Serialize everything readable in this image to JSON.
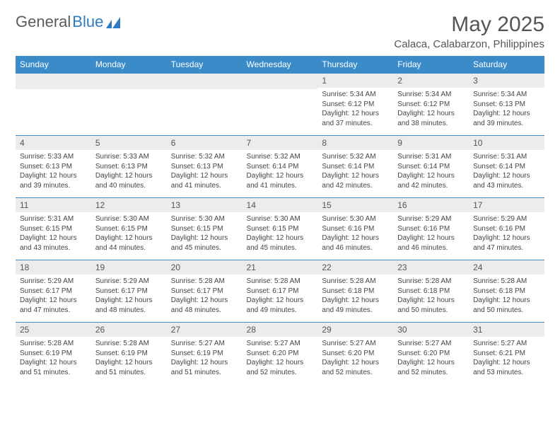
{
  "logo": {
    "text1": "General",
    "text2": "Blue"
  },
  "title": "May 2025",
  "location": "Calaca, Calabarzon, Philippines",
  "columns": [
    "Sunday",
    "Monday",
    "Tuesday",
    "Wednesday",
    "Thursday",
    "Friday",
    "Saturday"
  ],
  "colors": {
    "header_bg": "#3b8bc8",
    "header_text": "#ffffff",
    "daynum_bg": "#ececec",
    "text": "#444444",
    "row_border": "#3b8bc8"
  },
  "weeks": [
    [
      null,
      null,
      null,
      null,
      {
        "n": "1",
        "sr": "5:34 AM",
        "ss": "6:12 PM",
        "dl": "12 hours and 37 minutes."
      },
      {
        "n": "2",
        "sr": "5:34 AM",
        "ss": "6:12 PM",
        "dl": "12 hours and 38 minutes."
      },
      {
        "n": "3",
        "sr": "5:34 AM",
        "ss": "6:13 PM",
        "dl": "12 hours and 39 minutes."
      }
    ],
    [
      {
        "n": "4",
        "sr": "5:33 AM",
        "ss": "6:13 PM",
        "dl": "12 hours and 39 minutes."
      },
      {
        "n": "5",
        "sr": "5:33 AM",
        "ss": "6:13 PM",
        "dl": "12 hours and 40 minutes."
      },
      {
        "n": "6",
        "sr": "5:32 AM",
        "ss": "6:13 PM",
        "dl": "12 hours and 41 minutes."
      },
      {
        "n": "7",
        "sr": "5:32 AM",
        "ss": "6:14 PM",
        "dl": "12 hours and 41 minutes."
      },
      {
        "n": "8",
        "sr": "5:32 AM",
        "ss": "6:14 PM",
        "dl": "12 hours and 42 minutes."
      },
      {
        "n": "9",
        "sr": "5:31 AM",
        "ss": "6:14 PM",
        "dl": "12 hours and 42 minutes."
      },
      {
        "n": "10",
        "sr": "5:31 AM",
        "ss": "6:14 PM",
        "dl": "12 hours and 43 minutes."
      }
    ],
    [
      {
        "n": "11",
        "sr": "5:31 AM",
        "ss": "6:15 PM",
        "dl": "12 hours and 43 minutes."
      },
      {
        "n": "12",
        "sr": "5:30 AM",
        "ss": "6:15 PM",
        "dl": "12 hours and 44 minutes."
      },
      {
        "n": "13",
        "sr": "5:30 AM",
        "ss": "6:15 PM",
        "dl": "12 hours and 45 minutes."
      },
      {
        "n": "14",
        "sr": "5:30 AM",
        "ss": "6:15 PM",
        "dl": "12 hours and 45 minutes."
      },
      {
        "n": "15",
        "sr": "5:30 AM",
        "ss": "6:16 PM",
        "dl": "12 hours and 46 minutes."
      },
      {
        "n": "16",
        "sr": "5:29 AM",
        "ss": "6:16 PM",
        "dl": "12 hours and 46 minutes."
      },
      {
        "n": "17",
        "sr": "5:29 AM",
        "ss": "6:16 PM",
        "dl": "12 hours and 47 minutes."
      }
    ],
    [
      {
        "n": "18",
        "sr": "5:29 AM",
        "ss": "6:17 PM",
        "dl": "12 hours and 47 minutes."
      },
      {
        "n": "19",
        "sr": "5:29 AM",
        "ss": "6:17 PM",
        "dl": "12 hours and 48 minutes."
      },
      {
        "n": "20",
        "sr": "5:28 AM",
        "ss": "6:17 PM",
        "dl": "12 hours and 48 minutes."
      },
      {
        "n": "21",
        "sr": "5:28 AM",
        "ss": "6:17 PM",
        "dl": "12 hours and 49 minutes."
      },
      {
        "n": "22",
        "sr": "5:28 AM",
        "ss": "6:18 PM",
        "dl": "12 hours and 49 minutes."
      },
      {
        "n": "23",
        "sr": "5:28 AM",
        "ss": "6:18 PM",
        "dl": "12 hours and 50 minutes."
      },
      {
        "n": "24",
        "sr": "5:28 AM",
        "ss": "6:18 PM",
        "dl": "12 hours and 50 minutes."
      }
    ],
    [
      {
        "n": "25",
        "sr": "5:28 AM",
        "ss": "6:19 PM",
        "dl": "12 hours and 51 minutes."
      },
      {
        "n": "26",
        "sr": "5:28 AM",
        "ss": "6:19 PM",
        "dl": "12 hours and 51 minutes."
      },
      {
        "n": "27",
        "sr": "5:27 AM",
        "ss": "6:19 PM",
        "dl": "12 hours and 51 minutes."
      },
      {
        "n": "28",
        "sr": "5:27 AM",
        "ss": "6:20 PM",
        "dl": "12 hours and 52 minutes."
      },
      {
        "n": "29",
        "sr": "5:27 AM",
        "ss": "6:20 PM",
        "dl": "12 hours and 52 minutes."
      },
      {
        "n": "30",
        "sr": "5:27 AM",
        "ss": "6:20 PM",
        "dl": "12 hours and 52 minutes."
      },
      {
        "n": "31",
        "sr": "5:27 AM",
        "ss": "6:21 PM",
        "dl": "12 hours and 53 minutes."
      }
    ]
  ]
}
